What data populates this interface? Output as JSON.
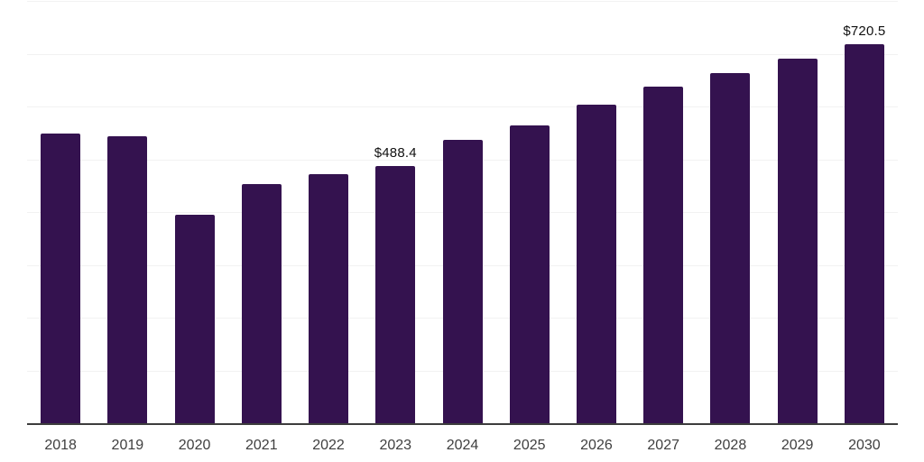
{
  "chart_data": {
    "type": "bar",
    "title": "",
    "xlabel": "",
    "ylabel": "",
    "categories": [
      "2018",
      "2019",
      "2020",
      "2021",
      "2022",
      "2023",
      "2024",
      "2025",
      "2026",
      "2027",
      "2028",
      "2029",
      "2030"
    ],
    "values": [
      550,
      546,
      397,
      454,
      473,
      488.4,
      538,
      566,
      605,
      639,
      665,
      692,
      720.5
    ],
    "data_labels": {
      "5": "$488.4",
      "12": "$720.5"
    },
    "ylim": [
      0,
      800
    ],
    "gridline_step": 100,
    "grid": true,
    "legend": false,
    "y_tick_labels_visible": false,
    "colors": {
      "bar": "#34124F",
      "gridline": "#F2F2F2",
      "axis_line": "#3D3D3D",
      "tick_label": "#3F3F3F",
      "data_label": "#111111"
    }
  }
}
